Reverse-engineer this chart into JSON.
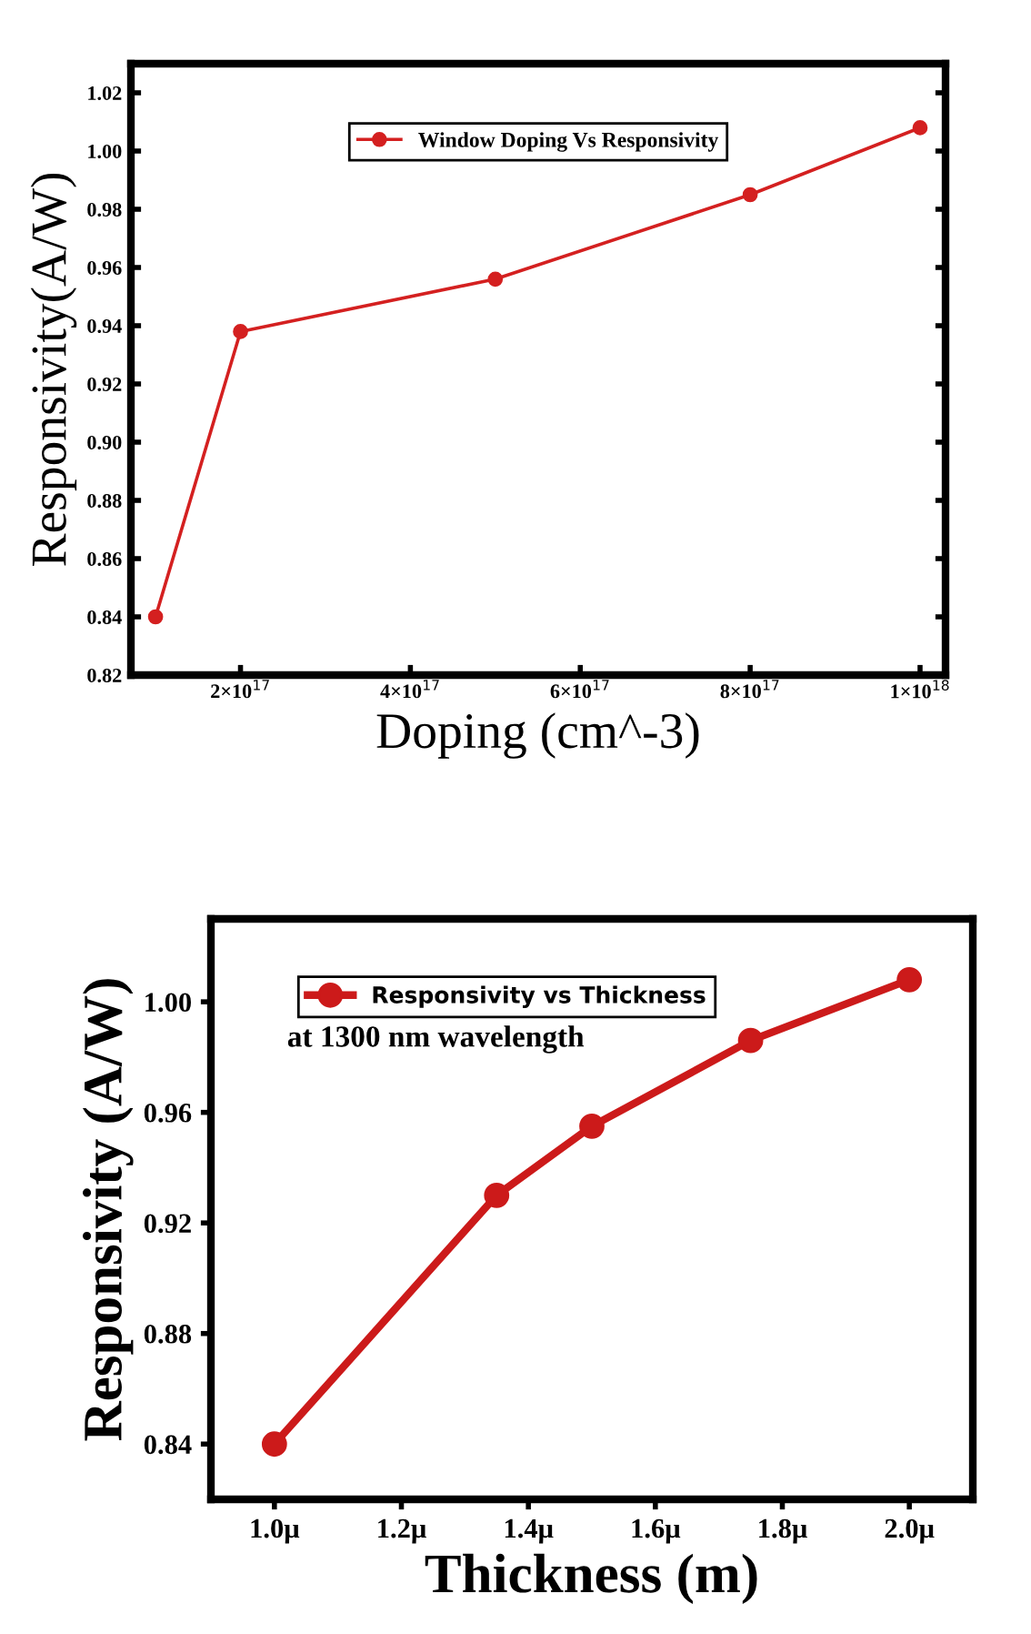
{
  "chart_data": [
    {
      "type": "line",
      "xlabel": "Doping (cm^-3)",
      "ylabel": "Responsivity(A/W)",
      "x": [
        1e+17,
        2e+17,
        5e+17,
        8e+17,
        1e+18
      ],
      "series": [
        {
          "name": "Window Doping Vs Responsivity",
          "color": "#d42020",
          "values": [
            0.84,
            0.938,
            0.956,
            0.985,
            1.008
          ]
        }
      ],
      "xlim": [
        7.1e+16,
        1.03e+18
      ],
      "xticks": [
        {
          "value": 2e+17,
          "label": "2×10$^{17}$"
        },
        {
          "value": 4e+17,
          "label": "4×10$^{17}$"
        },
        {
          "value": 6e+17,
          "label": "6×10$^{17}$"
        },
        {
          "value": 8e+17,
          "label": "8×10$^{17}$"
        },
        {
          "value": 1e+18,
          "label": "1×10$^{18}$"
        }
      ],
      "ylim": [
        0.82,
        1.03
      ],
      "yticks": [
        {
          "value": 0.82,
          "label": "0.82"
        },
        {
          "value": 0.84,
          "label": "0.84"
        },
        {
          "value": 0.86,
          "label": "0.86"
        },
        {
          "value": 0.88,
          "label": "0.88"
        },
        {
          "value": 0.9,
          "label": "0.90"
        },
        {
          "value": 0.92,
          "label": "0.92"
        },
        {
          "value": 0.94,
          "label": "0.94"
        },
        {
          "value": 0.96,
          "label": "0.96"
        },
        {
          "value": 0.98,
          "label": "0.98"
        },
        {
          "value": 1.0,
          "label": "1.00"
        },
        {
          "value": 1.02,
          "label": "1.02"
        }
      ],
      "marker": "circle",
      "line_style": "solid",
      "grid": false,
      "legend": "top"
    },
    {
      "type": "line",
      "xlabel": "Thickness (m)",
      "ylabel": "Responsivity (A/W)",
      "x": [
        1.0,
        1.35,
        1.5,
        1.75,
        2.0
      ],
      "series": [
        {
          "name": "Responsivity vs Thickness",
          "color": "#cc1a1a",
          "values": [
            0.84,
            0.93,
            0.955,
            0.986,
            1.008
          ]
        }
      ],
      "annotations": [
        "at 1300 nm wavelength"
      ],
      "xlim": [
        0.9,
        2.1
      ],
      "xticks": [
        {
          "value": 1.0,
          "label": "1.0μ"
        },
        {
          "value": 1.2,
          "label": "1.2μ"
        },
        {
          "value": 1.4,
          "label": "1.4μ"
        },
        {
          "value": 1.6,
          "label": "1.6μ"
        },
        {
          "value": 1.8,
          "label": "1.8μ"
        },
        {
          "value": 2.0,
          "label": "2.0μ"
        }
      ],
      "ylim": [
        0.82,
        1.03
      ],
      "yticks": [
        {
          "value": 0.84,
          "label": "0.84"
        },
        {
          "value": 0.88,
          "label": "0.88"
        },
        {
          "value": 0.92,
          "label": "0.92"
        },
        {
          "value": 0.96,
          "label": "0.96"
        },
        {
          "value": 1.0,
          "label": "1.00"
        }
      ],
      "marker": "circle",
      "line_style": "solid",
      "grid": false,
      "legend": "top left"
    }
  ]
}
